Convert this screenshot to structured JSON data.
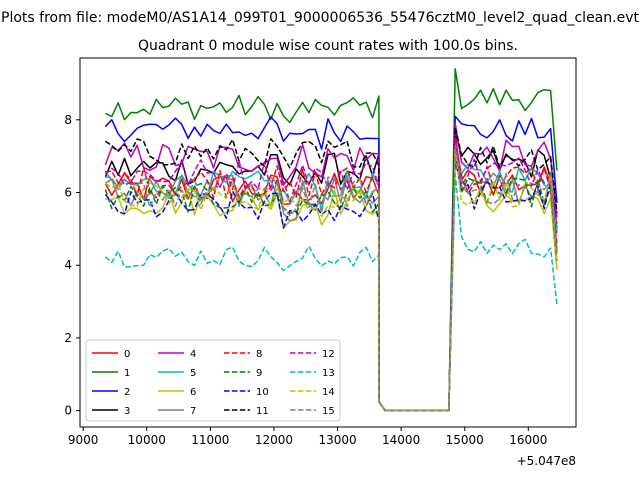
{
  "chart_data": {
    "type": "line",
    "suptitle": "Plots from file: modeM0/AS1A14_099T01_9000006536_55476cztM0_level2_quad_clean.evt",
    "title": "Quadrant 0 module wise count rates with 100.0s bins.",
    "xlabel": "",
    "ylabel": "",
    "x_offset_label": "+5.047e8",
    "xlim": [
      8950,
      16750
    ],
    "ylim": [
      -0.45,
      9.7
    ],
    "xticks": [
      9000,
      10000,
      11000,
      12000,
      13000,
      14000,
      15000,
      16000
    ],
    "yticks": [
      0,
      2,
      4,
      6,
      8
    ],
    "legend_position": "lower-left",
    "legend_columns": 4,
    "segments": [
      {
        "start": 9350,
        "end": 13650,
        "bin": 100
      },
      {
        "start": 14850,
        "end": 16450,
        "bin": 100
      }
    ],
    "gap": {
      "x": [
        13650,
        13750,
        13850,
        14750,
        14850
      ],
      "y": [
        0.2,
        0,
        0,
        0,
        null
      ]
    },
    "series": [
      {
        "name": "0",
        "color": "#ff0000",
        "dash": "solid",
        "base": 6.1,
        "noise": 0.45,
        "base2": 6.3,
        "start2": 7.6
      },
      {
        "name": "1",
        "color": "#008000",
        "dash": "solid",
        "base": 8.35,
        "noise": 0.35,
        "base2": 8.6,
        "start2": 9.4
      },
      {
        "name": "2",
        "color": "#0000ff",
        "dash": "solid",
        "base": 7.75,
        "noise": 0.35,
        "base2": 7.7,
        "start2": 8.1
      },
      {
        "name": "3",
        "color": "#000000",
        "dash": "solid",
        "base": 6.65,
        "noise": 0.45,
        "base2": 6.8,
        "start2": 7.7
      },
      {
        "name": "4",
        "color": "#bf00bf",
        "dash": "solid",
        "base": 6.95,
        "noise": 0.45,
        "base2": 7.0,
        "start2": 7.9
      },
      {
        "name": "5",
        "color": "#00bfbf",
        "dash": "solid",
        "base": 6.2,
        "noise": 0.4,
        "base2": 6.4,
        "start2": 7.3
      },
      {
        "name": "6",
        "color": "#bfbf00",
        "dash": "solid",
        "base": 5.75,
        "noise": 0.4,
        "base2": 5.8,
        "start2": 7.0
      },
      {
        "name": "7",
        "color": "#808080",
        "dash": "solid",
        "base": 6.0,
        "noise": 0.5,
        "base2": 6.1,
        "start2": 7.1
      },
      {
        "name": "8",
        "color": "#ff0000",
        "dash": "dashed",
        "base": 6.3,
        "noise": 0.45,
        "base2": 6.4,
        "start2": 7.4
      },
      {
        "name": "9",
        "color": "#008000",
        "dash": "dashed",
        "base": 5.85,
        "noise": 0.4,
        "base2": 6.0,
        "start2": 7.0
      },
      {
        "name": "10",
        "color": "#0000ff",
        "dash": "dashed",
        "base": 5.6,
        "noise": 0.45,
        "base2": 5.9,
        "start2": 6.9
      },
      {
        "name": "11",
        "color": "#000000",
        "dash": "dashed",
        "base": 7.1,
        "noise": 0.4,
        "base2": 7.0,
        "start2": 7.8
      },
      {
        "name": "12",
        "color": "#bf00bf",
        "dash": "dashed",
        "base": 6.5,
        "noise": 0.45,
        "base2": 6.6,
        "start2": 7.5
      },
      {
        "name": "13",
        "color": "#00bfbf",
        "dash": "dashed",
        "base": 4.25,
        "noise": 0.3,
        "base2": 4.5,
        "start2": 6.5
      },
      {
        "name": "14",
        "color": "#bfbf00",
        "dash": "dashed",
        "base": 5.9,
        "noise": 0.4,
        "base2": 6.0,
        "start2": 7.2
      },
      {
        "name": "15",
        "color": "#808080",
        "dash": "dashed",
        "base": 6.0,
        "noise": 0.45,
        "base2": 6.1,
        "start2": 7.3
      }
    ]
  }
}
